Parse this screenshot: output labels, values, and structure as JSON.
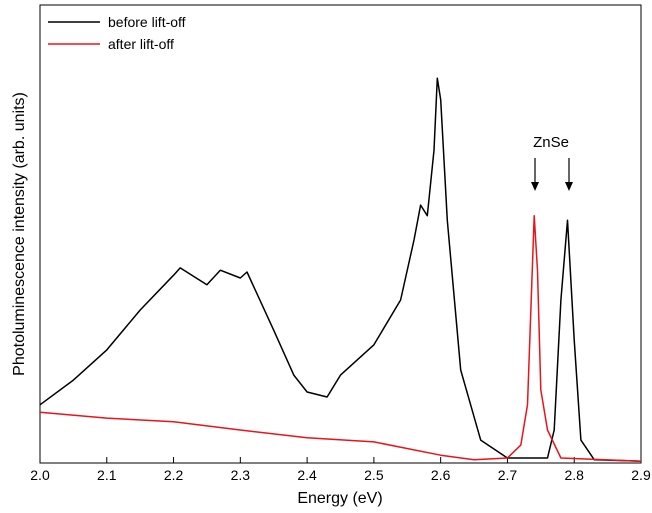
{
  "chart_data": {
    "type": "line",
    "xlabel": "Energy (eV)",
    "ylabel": "Photoluminescence intensity (arb. units)",
    "annotation": "ZnSe",
    "xlim": [
      2.0,
      2.9
    ],
    "ylim": [
      0,
      100
    ],
    "xticks": [
      {
        "value": 2.0,
        "label": "2.0"
      },
      2.1,
      2.2,
      2.3,
      2.4,
      2.5,
      2.6,
      2.7,
      2.8,
      2.9
    ],
    "legend": "upper left",
    "series": [
      {
        "name": "before lift-off",
        "color": "#000000",
        "x": [
          2.0,
          2.05,
          2.1,
          2.15,
          2.2,
          2.21,
          2.25,
          2.27,
          2.3,
          2.31,
          2.35,
          2.38,
          2.4,
          2.43,
          2.45,
          2.5,
          2.54,
          2.56,
          2.57,
          2.58,
          2.59,
          2.595,
          2.6,
          2.61,
          2.63,
          2.66,
          2.7,
          2.76,
          2.77,
          2.78,
          2.79,
          2.8,
          2.81,
          2.83,
          2.9
        ],
        "values": [
          12.7,
          18.1,
          24.7,
          33.4,
          41,
          42.6,
          38.9,
          42.1,
          40.4,
          41.7,
          29,
          19.2,
          15.5,
          14.4,
          19.2,
          25.8,
          35.6,
          48.7,
          56.3,
          54,
          68.3,
          84,
          79.3,
          53,
          20.3,
          5,
          1.1,
          1.1,
          7.2,
          35.6,
          53,
          26.9,
          5,
          0.7,
          0.4
        ]
      },
      {
        "name": "after lift-off",
        "color": "#e8141c",
        "x": [
          2.0,
          2.1,
          2.2,
          2.3,
          2.4,
          2.5,
          2.6,
          2.65,
          2.7,
          2.72,
          2.73,
          2.74,
          2.745,
          2.75,
          2.76,
          2.78,
          2.9
        ],
        "values": [
          11.1,
          9.8,
          9,
          7.2,
          5.5,
          4.6,
          1.7,
          0.7,
          1.1,
          3.9,
          12.7,
          54,
          42,
          16,
          7.2,
          1.1,
          0.4
        ]
      }
    ]
  }
}
